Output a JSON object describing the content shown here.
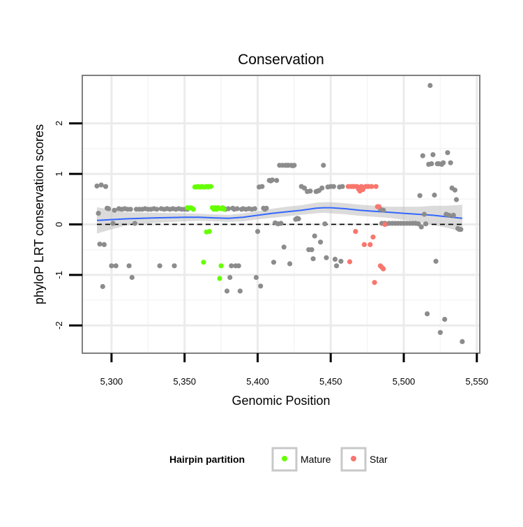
{
  "chart_data": {
    "type": "scatter",
    "title": "Conservation",
    "xlabel": "Genomic Position",
    "ylabel": "phyloP LRT conservation scores",
    "xlim": [
      5280,
      5552
    ],
    "ylim": [
      -2.55,
      2.95
    ],
    "x_ticks": [
      5300,
      5350,
      5400,
      5450,
      5500,
      5550
    ],
    "x_tick_labels": [
      "5,300",
      "5,350",
      "5,400",
      "5,450",
      "5,500",
      "5,550"
    ],
    "y_ticks": [
      -2,
      -1,
      0,
      1,
      2
    ],
    "y_tick_labels": [
      "-2",
      "-1",
      "0",
      "1",
      "2"
    ],
    "grid": true,
    "reference_line": {
      "y": 0,
      "style": "dashed",
      "color": "#000000"
    },
    "legend": {
      "title": "Hairpin partition",
      "position": "bottom",
      "entries": [
        {
          "label": "Mature",
          "color": "#66ff00"
        },
        {
          "label": "Star",
          "color": "#f8766d"
        }
      ]
    },
    "colors": {
      "other": "#8c8c8c",
      "Mature": "#66ff00",
      "Star": "#f8766d",
      "smooth": "#3366ff",
      "band": "#bebebe"
    },
    "smooth": {
      "x": [
        5290,
        5310,
        5330,
        5350,
        5360,
        5370,
        5380,
        5390,
        5400,
        5410,
        5420,
        5430,
        5440,
        5445,
        5450,
        5460,
        5470,
        5480,
        5490,
        5500,
        5510,
        5520,
        5530,
        5540
      ],
      "y": [
        0.08,
        0.11,
        0.13,
        0.14,
        0.14,
        0.13,
        0.12,
        0.14,
        0.18,
        0.22,
        0.25,
        0.28,
        0.32,
        0.33,
        0.33,
        0.31,
        0.28,
        0.26,
        0.24,
        0.22,
        0.2,
        0.18,
        0.15,
        0.12
      ],
      "lower": [
        -0.18,
        -0.02,
        0.03,
        0.06,
        0.07,
        0.06,
        0.05,
        0.06,
        0.1,
        0.13,
        0.16,
        0.19,
        0.22,
        0.23,
        0.22,
        0.2,
        0.17,
        0.15,
        0.13,
        0.09,
        0.05,
        -0.01,
        -0.07,
        -0.15
      ],
      "upper": [
        0.34,
        0.24,
        0.23,
        0.22,
        0.21,
        0.2,
        0.19,
        0.22,
        0.26,
        0.31,
        0.35,
        0.38,
        0.43,
        0.44,
        0.44,
        0.42,
        0.39,
        0.37,
        0.35,
        0.35,
        0.35,
        0.37,
        0.37,
        0.39
      ]
    },
    "series": [
      {
        "name": "other",
        "points": [
          [
            5290,
            0.76
          ],
          [
            5291,
            0.22
          ],
          [
            5292,
            -0.39
          ],
          [
            5293,
            0.78
          ],
          [
            5294,
            -1.23
          ],
          [
            5295,
            -0.4
          ],
          [
            5296,
            0.75
          ],
          [
            5297,
            0.32
          ],
          [
            5298,
            0.31
          ],
          [
            5300,
            -0.82
          ],
          [
            5301,
            0.02
          ],
          [
            5302,
            0.28
          ],
          [
            5303,
            -0.82
          ],
          [
            5305,
            0.31
          ],
          [
            5307,
            0.3
          ],
          [
            5309,
            0.31
          ],
          [
            5311,
            0.3
          ],
          [
            5312,
            -0.82
          ],
          [
            5313,
            0.3
          ],
          [
            5314,
            -1.05
          ],
          [
            5316,
            0.02
          ],
          [
            5317,
            0.3
          ],
          [
            5319,
            0.3
          ],
          [
            5321,
            0.3
          ],
          [
            5323,
            0.31
          ],
          [
            5325,
            0.3
          ],
          [
            5327,
            0.3
          ],
          [
            5329,
            0.31
          ],
          [
            5331,
            0.3
          ],
          [
            5333,
            -0.82
          ],
          [
            5334,
            0.31
          ],
          [
            5336,
            0.3
          ],
          [
            5338,
            0.31
          ],
          [
            5340,
            0.3
          ],
          [
            5342,
            0.31
          ],
          [
            5343,
            -0.82
          ],
          [
            5344,
            0.3
          ],
          [
            5346,
            0.31
          ],
          [
            5348,
            0.3
          ],
          [
            5350,
            0.3
          ],
          [
            5352,
            0.3
          ],
          [
            5377,
            0.31
          ],
          [
            5378,
            0.3
          ],
          [
            5379,
            -1.32
          ],
          [
            5380,
            0.31
          ],
          [
            5381,
            -1.05
          ],
          [
            5382,
            -0.82
          ],
          [
            5383,
            0.32
          ],
          [
            5384,
            0.3
          ],
          [
            5385,
            -0.82
          ],
          [
            5386,
            0.31
          ],
          [
            5387,
            -0.82
          ],
          [
            5388,
            -1.32
          ],
          [
            5389,
            0.3
          ],
          [
            5390,
            0.31
          ],
          [
            5392,
            0.3
          ],
          [
            5394,
            0.31
          ],
          [
            5396,
            0.3
          ],
          [
            5398,
            0.31
          ],
          [
            5399,
            -1.05
          ],
          [
            5400,
            -0.14
          ],
          [
            5401,
            0.74
          ],
          [
            5402,
            -1.22
          ],
          [
            5403,
            0.75
          ],
          [
            5404,
            0.32
          ],
          [
            5405,
            0.3
          ],
          [
            5406,
            0.32
          ],
          [
            5408,
            0.87
          ],
          [
            5409,
            0.86
          ],
          [
            5410,
            0.88
          ],
          [
            5411,
            -0.75
          ],
          [
            5412,
            0.03
          ],
          [
            5413,
            0.87
          ],
          [
            5414,
            0.01
          ],
          [
            5415,
            1.17
          ],
          [
            5416,
            0.02
          ],
          [
            5417,
            1.17
          ],
          [
            5418,
            -0.45
          ],
          [
            5419,
            1.17
          ],
          [
            5420,
            1.17
          ],
          [
            5421,
            1.17
          ],
          [
            5422,
            -0.78
          ],
          [
            5423,
            1.17
          ],
          [
            5424,
            1.16
          ],
          [
            5425,
            1.17
          ],
          [
            5426,
            0.1
          ],
          [
            5427,
            0.12
          ],
          [
            5428,
            0.11
          ],
          [
            5430,
            0.75
          ],
          [
            5432,
            0.72
          ],
          [
            5434,
            0.65
          ],
          [
            5435,
            -0.5
          ],
          [
            5436,
            0.66
          ],
          [
            5437,
            -0.5
          ],
          [
            5438,
            -0.68
          ],
          [
            5439,
            -0.23
          ],
          [
            5440,
            0.65
          ],
          [
            5441,
            0.66
          ],
          [
            5442,
            0.67
          ],
          [
            5443,
            -0.35
          ],
          [
            5444,
            0.72
          ],
          [
            5445,
            1.17
          ],
          [
            5446,
            0.01
          ],
          [
            5447,
            -0.66
          ],
          [
            5448,
            0.74
          ],
          [
            5450,
            0.75
          ],
          [
            5452,
            0.75
          ],
          [
            5453,
            -0.69
          ],
          [
            5454,
            -0.82
          ],
          [
            5456,
            0.74
          ],
          [
            5457,
            -0.73
          ],
          [
            5458,
            0.75
          ],
          [
            5484,
            0.3
          ],
          [
            5485,
            0.02
          ],
          [
            5486,
            0.28
          ],
          [
            5487,
            0.02
          ],
          [
            5488,
            0.01
          ],
          [
            5490,
            0.02
          ],
          [
            5492,
            0.02
          ],
          [
            5494,
            0.02
          ],
          [
            5496,
            0.02
          ],
          [
            5498,
            0.02
          ],
          [
            5500,
            0.02
          ],
          [
            5502,
            0.02
          ],
          [
            5504,
            0.02
          ],
          [
            5506,
            0.02
          ],
          [
            5508,
            0.02
          ],
          [
            5510,
            0.01
          ],
          [
            5511,
            0.57
          ],
          [
            5512,
            -0.05
          ],
          [
            5513,
            1.36
          ],
          [
            5514,
            0.2
          ],
          [
            5515,
            0.01
          ],
          [
            5516,
            -1.77
          ],
          [
            5517,
            1.19
          ],
          [
            5518,
            2.75
          ],
          [
            5519,
            1.2
          ],
          [
            5520,
            1.38
          ],
          [
            5521,
            0.58
          ],
          [
            5522,
            -0.73
          ],
          [
            5523,
            1.2
          ],
          [
            5524,
            1.2
          ],
          [
            5525,
            -2.14
          ],
          [
            5526,
            1.19
          ],
          [
            5527,
            1.22
          ],
          [
            5528,
            -1.88
          ],
          [
            5529,
            0.2
          ],
          [
            5530,
            1.42
          ],
          [
            5531,
            0.18
          ],
          [
            5532,
            1.22
          ],
          [
            5533,
            0.72
          ],
          [
            5534,
            0.18
          ],
          [
            5535,
            0.68
          ],
          [
            5536,
            0.49
          ],
          [
            5537,
            -0.08
          ],
          [
            5538,
            -0.1
          ],
          [
            5539,
            -0.1
          ],
          [
            5540,
            -2.32
          ]
        ]
      },
      {
        "name": "Mature",
        "points": [
          [
            5352,
            0.33
          ],
          [
            5353,
            0.32
          ],
          [
            5354,
            0.33
          ],
          [
            5355,
            0.32
          ],
          [
            5356,
            0.3
          ],
          [
            5357,
            0.74
          ],
          [
            5358,
            0.74
          ],
          [
            5359,
            0.75
          ],
          [
            5360,
            0.74
          ],
          [
            5361,
            0.74
          ],
          [
            5362,
            0.75
          ],
          [
            5363,
            0.74
          ],
          [
            5363,
            -0.75
          ],
          [
            5364,
            0.74
          ],
          [
            5365,
            0.75
          ],
          [
            5365,
            -0.15
          ],
          [
            5366,
            0.74
          ],
          [
            5367,
            0.75
          ],
          [
            5367,
            -0.14
          ],
          [
            5368,
            0.75
          ],
          [
            5369,
            0.33
          ],
          [
            5370,
            0.3
          ],
          [
            5371,
            0.33
          ],
          [
            5372,
            0.3
          ],
          [
            5373,
            0.33
          ],
          [
            5374,
            -1.07
          ],
          [
            5375,
            0.31
          ],
          [
            5375,
            -0.82
          ],
          [
            5376,
            0.33
          ],
          [
            5377,
            0.3
          ]
        ]
      },
      {
        "name": "Star",
        "points": [
          [
            5462,
            0.75
          ],
          [
            5463,
            -0.74
          ],
          [
            5464,
            0.75
          ],
          [
            5465,
            0.75
          ],
          [
            5466,
            0.75
          ],
          [
            5467,
            -0.14
          ],
          [
            5468,
            0.75
          ],
          [
            5469,
            0.7
          ],
          [
            5470,
            0.66
          ],
          [
            5471,
            0.75
          ],
          [
            5472,
            0.69
          ],
          [
            5473,
            -0.4
          ],
          [
            5474,
            0.75
          ],
          [
            5475,
            0.75
          ],
          [
            5476,
            0.75
          ],
          [
            5477,
            -0.4
          ],
          [
            5478,
            0.75
          ],
          [
            5479,
            -0.25
          ],
          [
            5480,
            -1.15
          ],
          [
            5481,
            0.75
          ],
          [
            5482,
            0.35
          ],
          [
            5483,
            0.35
          ],
          [
            5484,
            -0.82
          ],
          [
            5485,
            -0.85
          ],
          [
            5486,
            -0.88
          ],
          [
            5487,
            0.0
          ]
        ]
      }
    ]
  }
}
